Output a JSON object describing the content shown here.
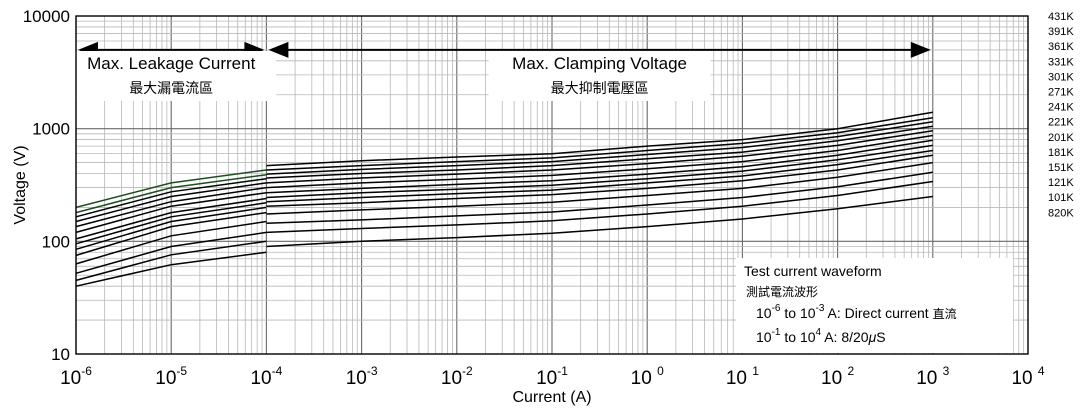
{
  "chart_data": {
    "type": "line",
    "xlabel": "Current (A)",
    "ylabel": "Voltage (V)",
    "xscale": "log",
    "yscale": "log",
    "xlim": [
      1e-06,
      10000
    ],
    "ylim": [
      10,
      10000
    ],
    "x_ticks": [
      {
        "base": "10",
        "exp": "-6"
      },
      {
        "base": "10",
        "exp": "-5"
      },
      {
        "base": "10",
        "exp": "-4"
      },
      {
        "base": "10",
        "exp": "-3"
      },
      {
        "base": "10",
        "exp": "-2"
      },
      {
        "base": "10",
        "exp": "-1"
      },
      {
        "base": "10 ",
        "exp": "0"
      },
      {
        "base": "10 ",
        "exp": "1"
      },
      {
        "base": "10 ",
        "exp": "2"
      },
      {
        "base": "10 ",
        "exp": "3"
      },
      {
        "base": "10 ",
        "exp": "4"
      }
    ],
    "y_ticks": [
      "10",
      "100",
      "1000",
      "10000"
    ],
    "grid": true,
    "regions": [
      {
        "label": "Max. Leakage Current",
        "label_zh": "最大漏電流區",
        "x_range": [
          1e-06,
          0.0001
        ]
      },
      {
        "label": "Max. Clamping Voltage",
        "label_zh": "最大抑制電壓區",
        "x_range": [
          0.0001,
          1000
        ]
      }
    ],
    "legend_position": "right",
    "series_labels": [
      "431K",
      "391K",
      "361K",
      "331K",
      "301K",
      "271K",
      "241K",
      "221K",
      "201K",
      "181K",
      "151K",
      "121K",
      "101K",
      "820K"
    ],
    "series": [
      {
        "name": "431K",
        "leakage": [
          [
            1e-06,
            200
          ],
          [
            1e-05,
            330
          ],
          [
            0.0001,
            430
          ]
        ],
        "clamping": [
          [
            0.0001,
            470
          ],
          [
            0.001,
            520
          ],
          [
            0.01,
            560
          ],
          [
            0.1,
            600
          ],
          [
            1,
            700
          ],
          [
            10,
            800
          ],
          [
            100,
            1000
          ],
          [
            1000,
            1400
          ]
        ]
      },
      {
        "name": "391K",
        "leakage": [
          [
            1e-06,
            180
          ],
          [
            1e-05,
            300
          ],
          [
            0.0001,
            390
          ]
        ],
        "clamping": [
          [
            0.0001,
            430
          ],
          [
            0.001,
            470
          ],
          [
            0.01,
            510
          ],
          [
            0.1,
            550
          ],
          [
            1,
            640
          ],
          [
            10,
            740
          ],
          [
            100,
            920
          ],
          [
            1000,
            1250
          ]
        ]
      },
      {
        "name": "361K",
        "leakage": [
          [
            1e-06,
            165
          ],
          [
            1e-05,
            275
          ],
          [
            0.0001,
            360
          ]
        ],
        "clamping": [
          [
            0.0001,
            395
          ],
          [
            0.001,
            435
          ],
          [
            0.01,
            470
          ],
          [
            0.1,
            510
          ],
          [
            1,
            590
          ],
          [
            10,
            680
          ],
          [
            100,
            850
          ],
          [
            1000,
            1150
          ]
        ]
      },
      {
        "name": "331K",
        "leakage": [
          [
            1e-06,
            150
          ],
          [
            1e-05,
            250
          ],
          [
            0.0001,
            330
          ]
        ],
        "clamping": [
          [
            0.0001,
            365
          ],
          [
            0.001,
            400
          ],
          [
            0.01,
            430
          ],
          [
            0.1,
            470
          ],
          [
            1,
            540
          ],
          [
            10,
            620
          ],
          [
            100,
            780
          ],
          [
            1000,
            1050
          ]
        ]
      },
      {
        "name": "301K",
        "leakage": [
          [
            1e-06,
            135
          ],
          [
            1e-05,
            225
          ],
          [
            0.0001,
            300
          ]
        ],
        "clamping": [
          [
            0.0001,
            330
          ],
          [
            0.001,
            365
          ],
          [
            0.01,
            395
          ],
          [
            0.1,
            430
          ],
          [
            1,
            490
          ],
          [
            10,
            570
          ],
          [
            100,
            710
          ],
          [
            1000,
            960
          ]
        ]
      },
      {
        "name": "271K",
        "leakage": [
          [
            1e-06,
            120
          ],
          [
            1e-05,
            205
          ],
          [
            0.0001,
            270
          ]
        ],
        "clamping": [
          [
            0.0001,
            300
          ],
          [
            0.001,
            330
          ],
          [
            0.01,
            355
          ],
          [
            0.1,
            385
          ],
          [
            1,
            440
          ],
          [
            10,
            510
          ],
          [
            100,
            640
          ],
          [
            1000,
            870
          ]
        ]
      },
      {
        "name": "241K",
        "leakage": [
          [
            1e-06,
            105
          ],
          [
            1e-05,
            180
          ],
          [
            0.0001,
            240
          ]
        ],
        "clamping": [
          [
            0.0001,
            270
          ],
          [
            0.001,
            295
          ],
          [
            0.01,
            320
          ],
          [
            0.1,
            345
          ],
          [
            1,
            395
          ],
          [
            10,
            460
          ],
          [
            100,
            580
          ],
          [
            1000,
            790
          ]
        ]
      },
      {
        "name": "221K",
        "leakage": [
          [
            1e-06,
            95
          ],
          [
            1e-05,
            165
          ],
          [
            0.0001,
            220
          ]
        ],
        "clamping": [
          [
            0.0001,
            245
          ],
          [
            0.001,
            270
          ],
          [
            0.01,
            290
          ],
          [
            0.1,
            315
          ],
          [
            1,
            360
          ],
          [
            10,
            420
          ],
          [
            100,
            530
          ],
          [
            1000,
            710
          ]
        ]
      },
      {
        "name": "201K",
        "leakage": [
          [
            1e-06,
            85
          ],
          [
            1e-05,
            150
          ],
          [
            0.0001,
            200
          ]
        ],
        "clamping": [
          [
            0.0001,
            225
          ],
          [
            0.001,
            245
          ],
          [
            0.01,
            265
          ],
          [
            0.1,
            285
          ],
          [
            1,
            330
          ],
          [
            10,
            380
          ],
          [
            100,
            480
          ],
          [
            1000,
            640
          ]
        ]
      },
      {
        "name": "181K",
        "leakage": [
          [
            1e-06,
            75
          ],
          [
            1e-05,
            135
          ],
          [
            0.0001,
            180
          ]
        ],
        "clamping": [
          [
            0.0001,
            205
          ],
          [
            0.001,
            220
          ],
          [
            0.01,
            240
          ],
          [
            0.1,
            260
          ],
          [
            1,
            295
          ],
          [
            10,
            345
          ],
          [
            100,
            430
          ],
          [
            1000,
            580
          ]
        ]
      },
      {
        "name": "151K",
        "leakage": [
          [
            1e-06,
            63
          ],
          [
            1e-05,
            112
          ],
          [
            0.0001,
            150
          ]
        ],
        "clamping": [
          [
            0.0001,
            175
          ],
          [
            0.001,
            190
          ],
          [
            0.01,
            205
          ],
          [
            0.1,
            222
          ],
          [
            1,
            255
          ],
          [
            10,
            295
          ],
          [
            100,
            370
          ],
          [
            1000,
            500
          ]
        ]
      },
      {
        "name": "121K",
        "leakage": [
          [
            1e-06,
            52
          ],
          [
            1e-05,
            90
          ],
          [
            0.0001,
            120
          ]
        ],
        "clamping": [
          [
            0.0001,
            145
          ],
          [
            0.001,
            155
          ],
          [
            0.01,
            168
          ],
          [
            0.1,
            182
          ],
          [
            1,
            210
          ],
          [
            10,
            245
          ],
          [
            100,
            305
          ],
          [
            1000,
            410
          ]
        ]
      },
      {
        "name": "101K",
        "leakage": [
          [
            1e-06,
            45
          ],
          [
            1e-05,
            76
          ],
          [
            0.0001,
            100
          ]
        ],
        "clamping": [
          [
            0.0001,
            120
          ],
          [
            0.001,
            130
          ],
          [
            0.01,
            140
          ],
          [
            0.1,
            152
          ],
          [
            1,
            175
          ],
          [
            10,
            205
          ],
          [
            100,
            255
          ],
          [
            1000,
            340
          ]
        ]
      },
      {
        "name": "820K",
        "leakage": [
          [
            1e-06,
            40
          ],
          [
            1e-05,
            62
          ],
          [
            0.0001,
            80
          ]
        ],
        "clamping": [
          [
            0.0001,
            90
          ],
          [
            0.001,
            100
          ],
          [
            0.01,
            108
          ],
          [
            0.1,
            118
          ],
          [
            1,
            135
          ],
          [
            10,
            158
          ],
          [
            100,
            195
          ],
          [
            1000,
            250
          ]
        ]
      }
    ]
  },
  "annotation": {
    "title": "Test current waveform",
    "title_zh": "測試電流波形",
    "line1": {
      "a": "10",
      "a_exp": "-6",
      "b": " to 10",
      "b_exp": "-3",
      "c": " A: Direct current ",
      "c_zh": "直流"
    },
    "line2": {
      "a": "10",
      "a_exp": "-1",
      "b": " to 10",
      "b_exp": "4",
      "c": "  A: 8/20",
      "mu": "μ",
      "s": "S"
    }
  }
}
